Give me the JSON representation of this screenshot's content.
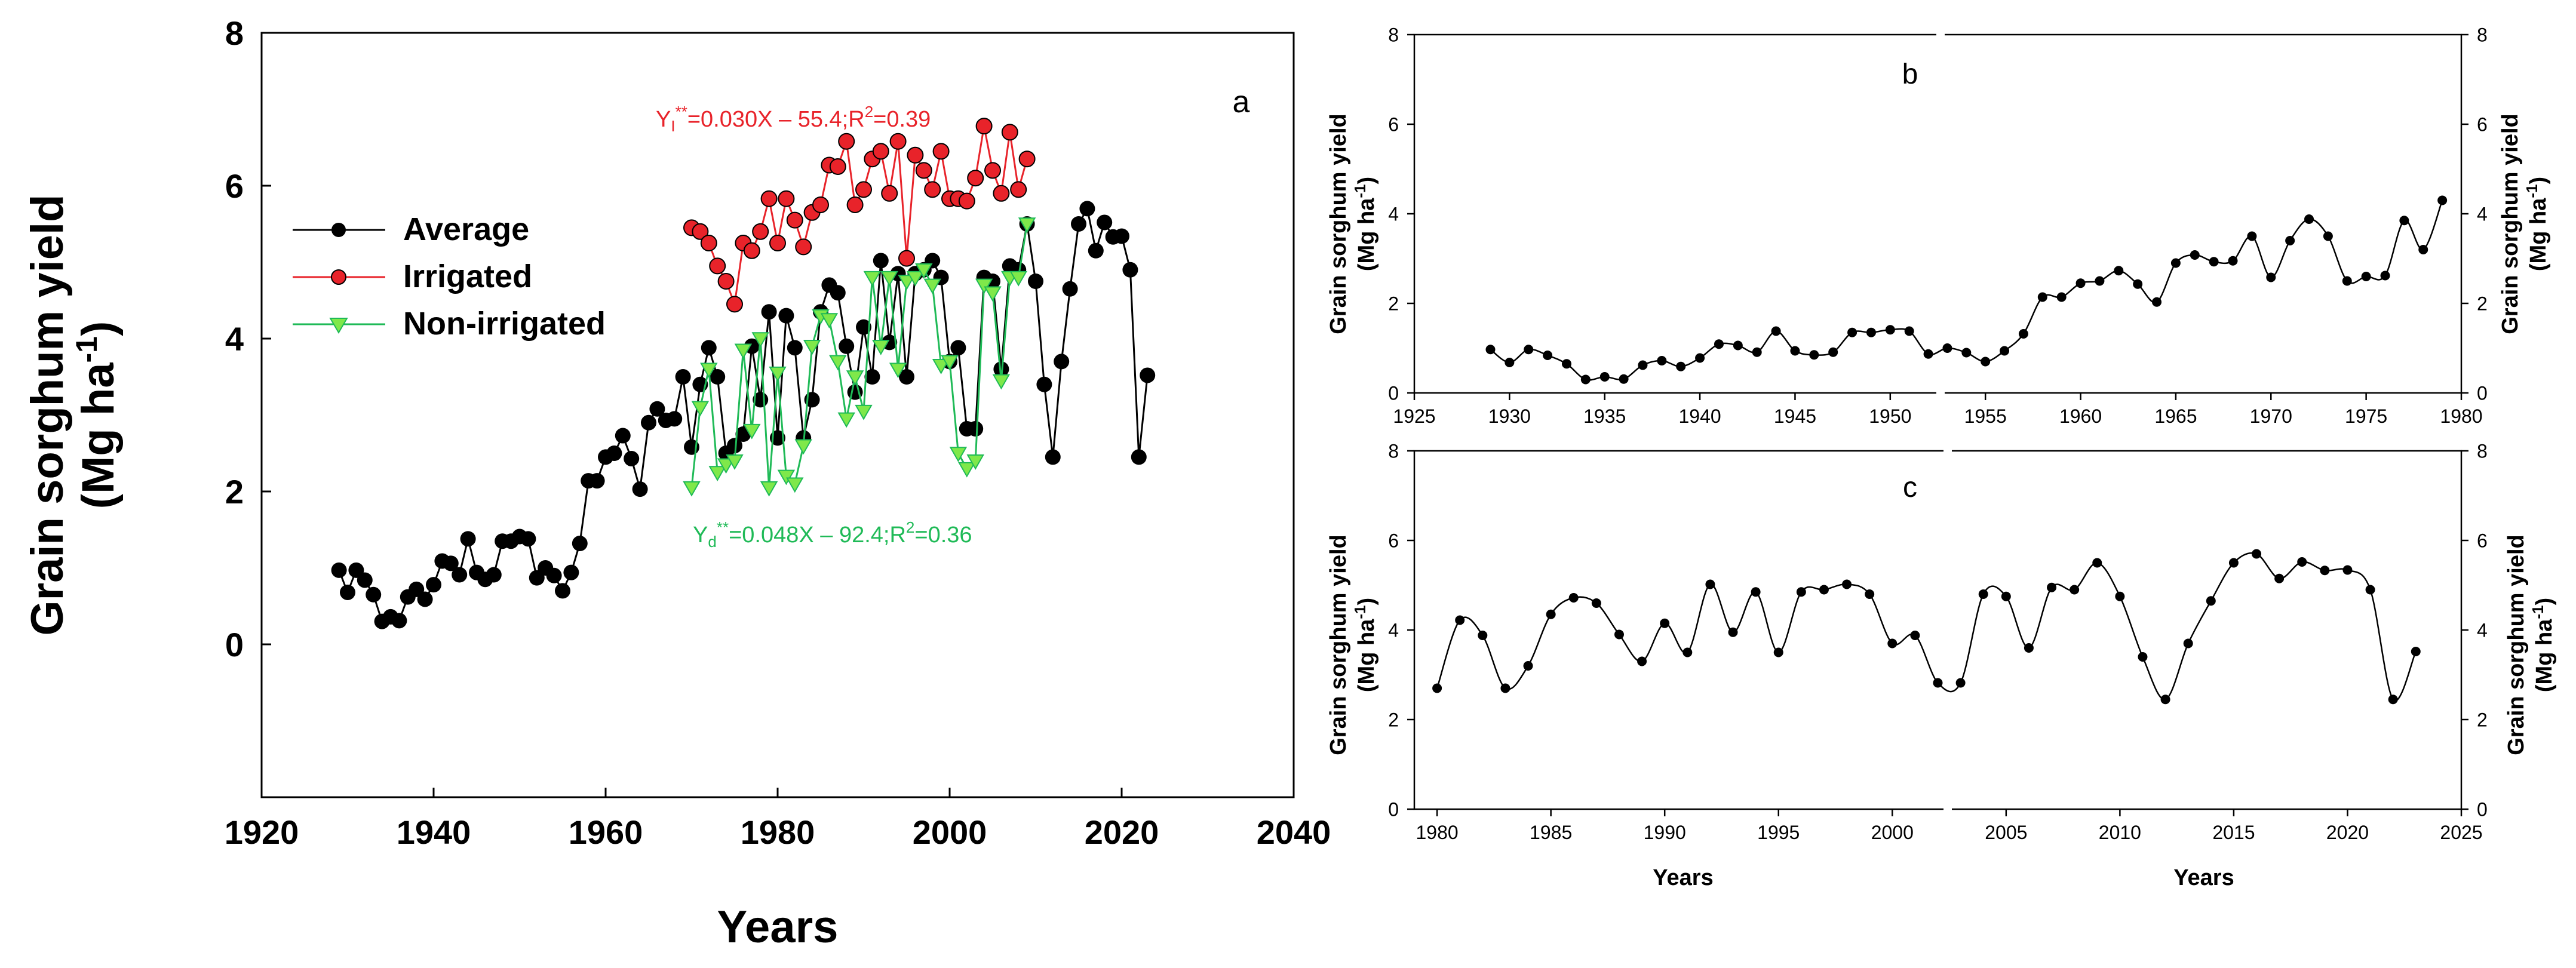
{
  "chart_data": [
    {
      "id": "a",
      "type": "line",
      "panel_label": "a",
      "xlabel": "Years",
      "ylabel_line1": "Grain sorghum yield",
      "ylabel_unit_base": "(Mg ha",
      "ylabel_unit_sup": "-1",
      "ylabel_unit_end": ")",
      "xlim": [
        1920,
        2040
      ],
      "ylim": [
        -2,
        8
      ],
      "xticks": [
        "1920",
        "1940",
        "1960",
        "1980",
        "2000",
        "2020",
        "2040"
      ],
      "yticks": [
        "0",
        "2",
        "4",
        "6",
        "8"
      ],
      "legend": {
        "placement": "upper-left",
        "entries": [
          {
            "label": "Average",
            "series": "Average"
          },
          {
            "label": "Irrigated",
            "series": "Irrigated"
          },
          {
            "label": "Non-irrigated",
            "series": "Non-irrigated"
          }
        ]
      },
      "annotations": {
        "irrigated_eq": {
          "pre": "Y",
          "sub": "I",
          "sup": "**",
          "post": "=0.030X – 55.4;R",
          "sup2": "2",
          "post2": "=0.39",
          "color": "#e8232a"
        },
        "dryland_eq": {
          "pre": "Y",
          "sub": "d",
          "sup": "**",
          "post": "=0.048X – 92.4;R",
          "sup2": "2",
          "post2": "=0.36",
          "color": "#1fba57"
        }
      },
      "series": [
        {
          "name": "Average",
          "color": "#000000",
          "marker": "circle",
          "marker_fill": "#000000",
          "x": [
            1929,
            1930,
            1931,
            1932,
            1933,
            1934,
            1935,
            1936,
            1937,
            1938,
            1939,
            1940,
            1941,
            1942,
            1943,
            1944,
            1945,
            1946,
            1947,
            1948,
            1949,
            1950,
            1951,
            1952,
            1953,
            1954,
            1955,
            1956,
            1957,
            1958,
            1959,
            1960,
            1961,
            1962,
            1963,
            1964,
            1965,
            1966,
            1967,
            1968,
            1969,
            1970,
            1971,
            1972,
            1973,
            1974,
            1975,
            1976,
            1977,
            1978,
            1979,
            1980,
            1981,
            1982,
            1983,
            1984,
            1985,
            1986,
            1987,
            1988,
            1989,
            1990,
            1991,
            1992,
            1993,
            1994,
            1995,
            1996,
            1997,
            1998,
            1999,
            2000,
            2001,
            2002,
            2003,
            2004,
            2005,
            2006,
            2007,
            2008,
            2009,
            2010,
            2011,
            2012,
            2013,
            2014,
            2015,
            2016,
            2017,
            2018,
            2019,
            2020,
            2021,
            2022,
            2023
          ],
          "values": [
            0.97,
            0.68,
            0.97,
            0.84,
            0.65,
            0.3,
            0.36,
            0.31,
            0.62,
            0.72,
            0.59,
            0.78,
            1.09,
            1.06,
            0.91,
            1.38,
            0.94,
            0.85,
            0.91,
            1.35,
            1.35,
            1.41,
            1.38,
            0.87,
            1.0,
            0.9,
            0.7,
            0.94,
            1.32,
            2.14,
            2.14,
            2.45,
            2.5,
            2.73,
            2.43,
            2.03,
            2.9,
            3.08,
            2.93,
            2.95,
            3.5,
            2.58,
            3.4,
            3.88,
            3.5,
            2.5,
            2.6,
            2.75,
            3.9,
            3.2,
            4.35,
            2.7,
            4.3,
            3.88,
            2.7,
            3.2,
            4.35,
            4.7,
            4.6,
            3.9,
            3.3,
            4.15,
            3.5,
            5.02,
            3.95,
            4.85,
            3.5,
            4.85,
            4.9,
            5.02,
            4.8,
            3.7,
            3.88,
            2.82,
            2.82,
            4.8,
            4.75,
            3.6,
            4.95,
            4.9,
            5.5,
            4.75,
            3.4,
            2.45,
            3.7,
            4.65,
            5.5,
            5.7,
            5.15,
            5.52,
            5.33,
            5.34,
            4.9,
            2.45,
            3.52
          ]
        },
        {
          "name": "Irrigated",
          "color": "#e8232a",
          "marker": "circle",
          "marker_fill": "#e8232a",
          "x": [
            1970,
            1971,
            1972,
            1973,
            1974,
            1975,
            1976,
            1977,
            1978,
            1979,
            1980,
            1981,
            1982,
            1983,
            1984,
            1985,
            1986,
            1987,
            1988,
            1989,
            1990,
            1991,
            1992,
            1993,
            1994,
            1995,
            1996,
            1997,
            1998,
            1999,
            2000,
            2001,
            2002,
            2003,
            2004,
            2005,
            2006,
            2007,
            2008,
            2009
          ],
          "values": [
            5.45,
            5.4,
            5.25,
            4.95,
            4.75,
            4.45,
            5.25,
            5.15,
            5.4,
            5.83,
            5.25,
            5.83,
            5.55,
            5.2,
            5.65,
            5.75,
            6.27,
            6.25,
            6.58,
            5.75,
            5.95,
            6.35,
            6.45,
            5.9,
            6.58,
            5.05,
            6.4,
            6.2,
            5.95,
            6.45,
            5.83,
            5.83,
            5.8,
            6.1,
            6.78,
            6.2,
            5.9,
            6.7,
            5.95,
            6.35
          ]
        },
        {
          "name": "Non-irrigated",
          "color": "#1fba57",
          "marker": "triangle-down",
          "marker_fill": "#7fe84a",
          "x": [
            1970,
            1971,
            1972,
            1973,
            1974,
            1975,
            1976,
            1977,
            1978,
            1979,
            1980,
            1981,
            1982,
            1983,
            1984,
            1985,
            1986,
            1987,
            1988,
            1989,
            1990,
            1991,
            1992,
            1993,
            1994,
            1995,
            1996,
            1997,
            1998,
            1999,
            2000,
            2001,
            2002,
            2003,
            2004,
            2005,
            2006,
            2007,
            2008,
            2009
          ],
          "values": [
            2.05,
            3.1,
            3.6,
            2.25,
            2.35,
            2.4,
            3.85,
            2.8,
            4.0,
            2.05,
            3.55,
            2.2,
            2.1,
            2.6,
            3.9,
            4.3,
            4.25,
            3.7,
            2.95,
            3.5,
            3.05,
            4.8,
            3.9,
            4.8,
            3.6,
            4.75,
            4.8,
            4.9,
            4.7,
            3.65,
            3.7,
            2.5,
            2.3,
            2.4,
            4.7,
            4.6,
            3.45,
            4.8,
            4.8,
            5.5
          ]
        }
      ]
    },
    {
      "id": "b",
      "type": "line",
      "panel_label": "b",
      "xlabel": "",
      "ylabel_line1": "Grain sorghum yield",
      "ylabel_line2": "(Mg ha",
      "ylabel_sup": "-1",
      "ylabel_end": ")",
      "xlim": [
        1925,
        1980
      ],
      "ylim": [
        0,
        8
      ],
      "xticks": [
        "1925",
        "1930",
        "1935",
        "1940",
        "1945",
        "1950",
        "1955",
        "1960",
        "1965",
        "1970",
        "1975",
        "1980"
      ],
      "yticks": [
        "0",
        "2",
        "4",
        "6",
        "8"
      ],
      "series": [
        {
          "name": "Average",
          "color": "#000000",
          "marker": "circle",
          "x": [
            1929,
            1930,
            1931,
            1932,
            1933,
            1934,
            1935,
            1936,
            1937,
            1938,
            1939,
            1940,
            1941,
            1942,
            1943,
            1944,
            1945,
            1946,
            1947,
            1948,
            1949,
            1950,
            1951,
            1952,
            1953,
            1954,
            1955,
            1956,
            1957,
            1958,
            1959,
            1960,
            1961,
            1962,
            1963,
            1964,
            1965,
            1966,
            1967,
            1968,
            1969,
            1970,
            1971,
            1972,
            1973,
            1974,
            1975,
            1976,
            1977,
            1978,
            1979
          ],
          "values": [
            0.97,
            0.68,
            0.97,
            0.84,
            0.65,
            0.3,
            0.36,
            0.31,
            0.62,
            0.72,
            0.59,
            0.78,
            1.09,
            1.06,
            0.91,
            1.38,
            0.94,
            0.85,
            0.91,
            1.35,
            1.35,
            1.41,
            1.38,
            0.87,
            1.0,
            0.9,
            0.7,
            0.94,
            1.32,
            2.14,
            2.14,
            2.45,
            2.5,
            2.73,
            2.43,
            2.03,
            2.9,
            3.08,
            2.93,
            2.95,
            3.5,
            2.58,
            3.4,
            3.88,
            3.5,
            2.5,
            2.6,
            2.62,
            3.85,
            3.2,
            4.3
          ]
        }
      ]
    },
    {
      "id": "c",
      "type": "line",
      "panel_label": "c",
      "xlabel": "Years",
      "ylabel_line1": "Grain sorghum yield",
      "ylabel_line2": "(Mg ha",
      "ylabel_sup": "-1",
      "ylabel_end": ")",
      "xlim": [
        1979,
        2025
      ],
      "ylim": [
        0,
        8
      ],
      "xticks": [
        "1980",
        "1985",
        "1990",
        "1995",
        "2000",
        "2005",
        "2010",
        "2015",
        "2020",
        "2025"
      ],
      "yticks": [
        "0",
        "2",
        "4",
        "6",
        "8"
      ],
      "series": [
        {
          "name": "Average",
          "color": "#000000",
          "marker": "circle",
          "x": [
            1980,
            1981,
            1982,
            1983,
            1984,
            1985,
            1986,
            1987,
            1988,
            1989,
            1990,
            1991,
            1992,
            1993,
            1994,
            1995,
            1996,
            1997,
            1998,
            1999,
            2000,
            2001,
            2002,
            2003,
            2004,
            2005,
            2006,
            2007,
            2008,
            2009,
            2010,
            2011,
            2012,
            2013,
            2014,
            2015,
            2016,
            2017,
            2018,
            2019,
            2020,
            2021,
            2022,
            2023
          ],
          "values": [
            2.7,
            4.22,
            3.88,
            2.7,
            3.2,
            4.35,
            4.72,
            4.6,
            3.9,
            3.3,
            4.15,
            3.5,
            5.02,
            3.95,
            4.85,
            3.5,
            4.85,
            4.9,
            5.02,
            4.8,
            3.7,
            3.88,
            2.82,
            2.82,
            4.8,
            4.75,
            3.6,
            4.95,
            4.9,
            5.5,
            4.75,
            3.4,
            2.45,
            3.7,
            4.65,
            5.5,
            5.7,
            5.15,
            5.52,
            5.33,
            5.34,
            4.9,
            2.45,
            3.52
          ]
        }
      ]
    }
  ]
}
